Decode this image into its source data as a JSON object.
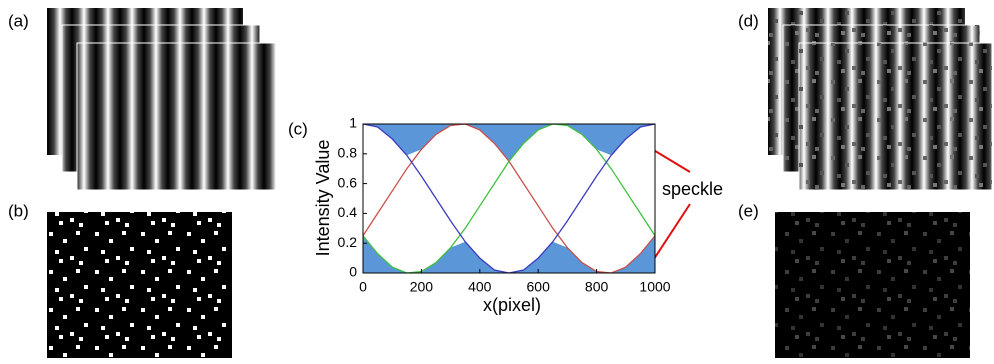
{
  "panel_labels": [
    "(a)",
    "(b)",
    "(c)",
    "(d)",
    "(e)"
  ],
  "chart_data": {
    "type": "line",
    "xlabel": "x(pixel)",
    "ylabel": "Intensity Value",
    "x": [
      0,
      50,
      100,
      150,
      200,
      250,
      300,
      350,
      400,
      450,
      500,
      550,
      600,
      650,
      700,
      750,
      800,
      850,
      900,
      950,
      1000
    ],
    "series": [
      {
        "color": "#c8504a",
        "values": [
          0.25,
          0.4,
          0.55,
          0.7,
          0.83,
          0.93,
          0.99,
          1,
          0.96,
          0.87,
          0.75,
          0.6,
          0.45,
          0.3,
          0.17,
          0.07,
          0.01,
          0,
          0.04,
          0.13,
          0.25
        ]
      },
      {
        "color": "#40c040",
        "values": [
          0.25,
          0.13,
          0.04,
          0,
          0.01,
          0.07,
          0.17,
          0.3,
          0.45,
          0.6,
          0.75,
          0.87,
          0.96,
          1,
          0.99,
          0.93,
          0.83,
          0.7,
          0.55,
          0.4,
          0.25
        ]
      },
      {
        "color": "#3c3cc0",
        "values": [
          1,
          0.98,
          0.9,
          0.79,
          0.65,
          0.5,
          0.35,
          0.21,
          0.1,
          0.02,
          0,
          0.02,
          0.1,
          0.21,
          0.35,
          0.5,
          0.65,
          0.79,
          0.9,
          0.98,
          1
        ]
      }
    ],
    "fill_color": "#5b97d8",
    "xlim": [
      0,
      1000
    ],
    "xticks": [
      0,
      200,
      400,
      600,
      800,
      1000
    ],
    "ylim": [
      0,
      1
    ],
    "yticks": [
      0,
      0.2,
      0.4,
      0.6,
      0.8,
      1
    ],
    "annotations": [
      "speckle"
    ]
  }
}
